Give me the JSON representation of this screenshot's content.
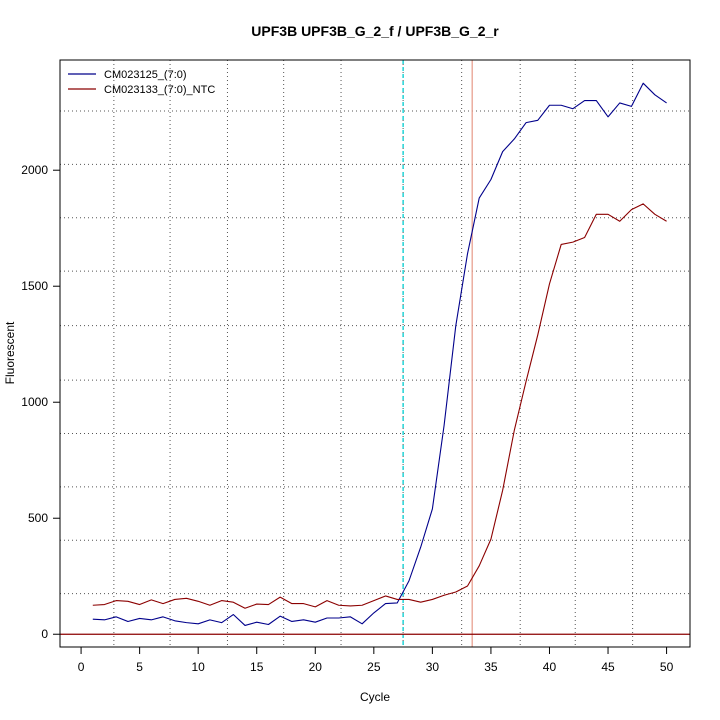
{
  "chart_data": {
    "type": "line",
    "title": "UPF3B  UPF3B_G_2_f / UPF3B_G_2_r",
    "xlabel": "Cycle",
    "ylabel": "Fluorescent",
    "xlim": [
      -1.8,
      52.0
    ],
    "ylim": [
      -55,
      2475
    ],
    "x_ticks": [
      0,
      5,
      10,
      15,
      20,
      25,
      30,
      35,
      40,
      45,
      50
    ],
    "y_ticks": [
      0,
      500,
      1000,
      1500,
      2000
    ],
    "grid": true,
    "grid_dotted_x": [
      2.8,
      7.6,
      12.5,
      17.3,
      22.2,
      27.5,
      32.5,
      37.5,
      42.2,
      47.1
    ],
    "grid_dotted_y": [
      175,
      405,
      635,
      865,
      1095,
      1330,
      1565,
      1795,
      2025,
      2255
    ],
    "legend_position": "top-left",
    "series": [
      {
        "name": "CM023125_(7:0)",
        "color": "#00008b",
        "x": [
          1,
          2,
          3,
          4,
          5,
          6,
          7,
          8,
          9,
          10,
          11,
          12,
          13,
          14,
          15,
          16,
          17,
          18,
          19,
          20,
          21,
          22,
          23,
          24,
          25,
          26,
          27,
          28,
          29,
          30,
          31,
          32,
          33,
          34,
          35,
          36,
          37,
          38,
          39,
          40,
          41,
          42,
          43,
          44,
          45,
          46,
          47,
          48,
          49,
          50
        ],
        "y": [
          65,
          62,
          75,
          55,
          68,
          62,
          75,
          58,
          50,
          45,
          62,
          50,
          85,
          38,
          52,
          42,
          78,
          55,
          62,
          52,
          70,
          70,
          75,
          45,
          92,
          132,
          135,
          230,
          375,
          540,
          900,
          1330,
          1640,
          1880,
          1960,
          2080,
          2135,
          2205,
          2215,
          2280,
          2280,
          2265,
          2300,
          2300,
          2230,
          2290,
          2275,
          2375,
          2325,
          2290
        ]
      },
      {
        "name": "CM023133_(7:0)_NTC",
        "color": "#8b0000",
        "x": [
          1,
          2,
          3,
          4,
          5,
          6,
          7,
          8,
          9,
          10,
          11,
          12,
          13,
          14,
          15,
          16,
          17,
          18,
          19,
          20,
          21,
          22,
          23,
          24,
          25,
          26,
          27,
          28,
          29,
          30,
          31,
          32,
          33,
          34,
          35,
          36,
          37,
          38,
          39,
          40,
          41,
          42,
          43,
          44,
          45,
          46,
          47,
          48,
          49,
          50
        ],
        "y": [
          125,
          128,
          145,
          142,
          128,
          148,
          132,
          150,
          155,
          142,
          125,
          145,
          138,
          112,
          130,
          128,
          160,
          132,
          132,
          118,
          145,
          125,
          122,
          125,
          145,
          165,
          150,
          150,
          138,
          150,
          168,
          182,
          208,
          295,
          410,
          620,
          880,
          1090,
          1290,
          1510,
          1680,
          1690,
          1710,
          1810,
          1810,
          1780,
          1830,
          1855,
          1810,
          1780
        ]
      }
    ],
    "threshold": {
      "y": 0,
      "color": "#8b0000"
    },
    "vlines": [
      {
        "x": 27.5,
        "color": "#00ced1",
        "style": "dashed"
      },
      {
        "x": 33.4,
        "color": "#e8a090",
        "style": "solid"
      }
    ]
  }
}
